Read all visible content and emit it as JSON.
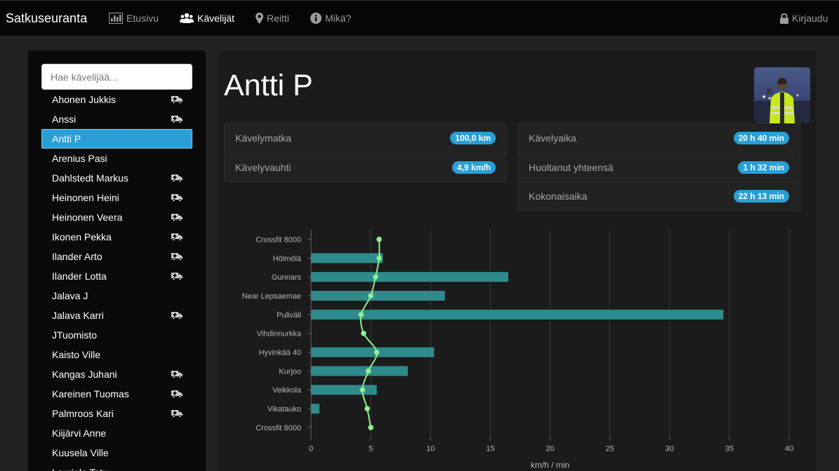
{
  "app": {
    "brand": "Satkuseuranta"
  },
  "nav": {
    "home": "Etusivu",
    "walkers": "Kävelijät",
    "route": "Reitti",
    "about": "Mikä?",
    "logout": "Kirjaudu"
  },
  "sidebar": {
    "search_placeholder": "Hae kävelijää...",
    "walkers": [
      {
        "name": "Ahonen Jukkis",
        "ambulance": true,
        "active": false
      },
      {
        "name": "Anssi",
        "ambulance": true,
        "active": false
      },
      {
        "name": "Antti P",
        "ambulance": false,
        "active": true
      },
      {
        "name": "Arenius Pasi",
        "ambulance": false,
        "active": false
      },
      {
        "name": "Dahlstedt Markus",
        "ambulance": true,
        "active": false
      },
      {
        "name": "Heinonen Heini",
        "ambulance": true,
        "active": false
      },
      {
        "name": "Heinonen Veera",
        "ambulance": true,
        "active": false
      },
      {
        "name": "Ikonen Pekka",
        "ambulance": true,
        "active": false
      },
      {
        "name": "Ilander Arto",
        "ambulance": true,
        "active": false
      },
      {
        "name": "Ilander Lotta",
        "ambulance": true,
        "active": false
      },
      {
        "name": "Jalava J",
        "ambulance": false,
        "active": false
      },
      {
        "name": "Jalava Karri",
        "ambulance": true,
        "active": false
      },
      {
        "name": "JTuomisto",
        "ambulance": false,
        "active": false
      },
      {
        "name": "Kaisto Ville",
        "ambulance": false,
        "active": false
      },
      {
        "name": "Kangas Juhani",
        "ambulance": true,
        "active": false
      },
      {
        "name": "Kareinen Tuomas",
        "ambulance": true,
        "active": false
      },
      {
        "name": "Palmroos Kari",
        "ambulance": true,
        "active": false
      },
      {
        "name": "Kiijärvi Anne",
        "ambulance": false,
        "active": false
      },
      {
        "name": "Kuusela Ville",
        "ambulance": false,
        "active": false
      },
      {
        "name": "Lauriola Tatu",
        "ambulance": false,
        "active": false
      }
    ]
  },
  "walker": {
    "name": "Antti P",
    "stats_left": [
      {
        "label": "Kävelymatka",
        "value": "100,0 km"
      },
      {
        "label": "Kävelyvauhti",
        "value": "4,9 km/h"
      }
    ],
    "stats_right": [
      {
        "label": "Kävelyaika",
        "value": "20 h 40 min"
      },
      {
        "label": "Huoltanut yhteensä",
        "value": "1 h 32 min"
      },
      {
        "label": "Kokonaisaika",
        "value": "22 h 13 min"
      }
    ]
  },
  "colors": {
    "accent": "#2a9fd6",
    "bar": "#2e8b8b",
    "line": "#90ee90"
  },
  "chart_data": {
    "type": "bar",
    "orientation": "horizontal",
    "categories": [
      "Crossfit 8000",
      "Hölmölä",
      "Gunnars",
      "Near Lepsaemae",
      "Puliväli",
      "Vihdinnurkka",
      "Hyvinkää 40",
      "Kurjoo",
      "Veikkola",
      "Vikatauko",
      "Crossfit 8000"
    ],
    "series": [
      {
        "type": "bar",
        "values": [
          0,
          6.0,
          16.5,
          11.2,
          34.5,
          0,
          10.3,
          8.1,
          5.5,
          0.7,
          0
        ]
      },
      {
        "type": "line",
        "values": [
          5.7,
          5.7,
          5.4,
          5.0,
          4.2,
          4.4,
          5.5,
          4.8,
          4.3,
          4.7,
          5.0
        ]
      }
    ],
    "xlabel": "km/h / min",
    "xlim": [
      0,
      40
    ],
    "xticks": [
      0,
      5,
      10,
      15,
      20,
      25,
      30,
      35,
      40
    ],
    "grid": true
  }
}
